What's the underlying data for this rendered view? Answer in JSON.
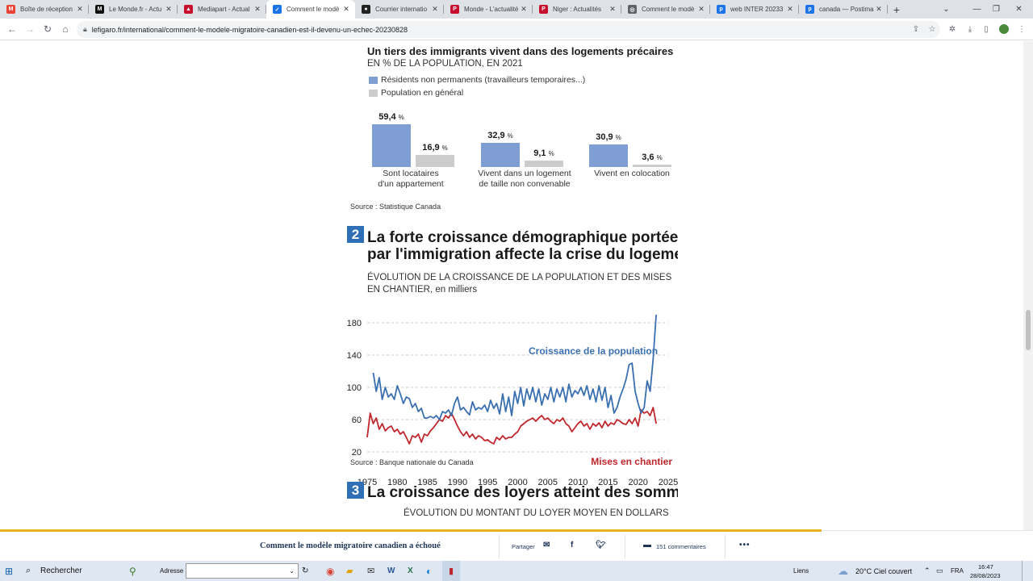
{
  "tabs": [
    {
      "label": "Boîte de réception",
      "icon": "gmail-icon",
      "color": "#ea4335",
      "glyph": "M",
      "active": false
    },
    {
      "label": "Le Monde.fr - Actu",
      "icon": "lemonde-icon",
      "color": "#111111",
      "glyph": "M",
      "active": false
    },
    {
      "label": "Mediapart - Actual",
      "icon": "mediapart-icon",
      "color": "#c8102e",
      "glyph": "▲",
      "active": false
    },
    {
      "label": "Comment le modè",
      "icon": "lefigaro-icon",
      "color": "#1a73e8",
      "glyph": "✓",
      "active": true
    },
    {
      "label": "Courrier internatio",
      "icon": "courrier-icon",
      "color": "#222222",
      "glyph": "●",
      "active": false
    },
    {
      "label": "Monde - L'actualité",
      "icon": "liberation-icon",
      "color": "#c8102e",
      "glyph": "P",
      "active": false
    },
    {
      "label": "Niger : Actualités",
      "icon": "liberation-icon",
      "color": "#c8102e",
      "glyph": "P",
      "active": false
    },
    {
      "label": "Comment le modè",
      "icon": "globe-icon",
      "color": "#5f6368",
      "glyph": "◎",
      "active": false
    },
    {
      "label": "web INTER 20233",
      "icon": "postimage-icon",
      "color": "#1a73e8",
      "glyph": "p",
      "active": false
    },
    {
      "label": "canada — Postima",
      "icon": "postimage-icon",
      "color": "#1a73e8",
      "glyph": "p",
      "active": false
    }
  ],
  "browser": {
    "url": "lefigaro.fr/international/comment-le-modele-migratoire-canadien-est-il-devenu-un-echec-20230828"
  },
  "chart1": {
    "title": "Un tiers des immigrants vivent dans des logements précaires",
    "subtitle": "EN % DE LA POPULATION, EN 2021",
    "source": "Source : Statistique Canada"
  },
  "section2": {
    "number": "2",
    "title_line1": "La forte croissance démographique portée",
    "title_line2": "par l'immigration affecte la crise du logeme",
    "subtitle_line1": "ÉVOLUTION DE LA CROISSANCE DE LA POPULATION ET DES MISES",
    "subtitle_line2": "EN CHANTIER, en milliers",
    "source": "Source : Banque nationale du Canada"
  },
  "section3": {
    "number": "3",
    "title": "La croissance des loyers atteint des somm",
    "subtitle": "ÉVOLUTION DU MONTANT DU LOYER MOYEN EN DOLLARS"
  },
  "chart_data": [
    {
      "type": "bar",
      "title": "Un tiers des immigrants vivent dans des logements précaires",
      "subtitle": "EN % DE LA POPULATION, EN 2021",
      "categories": [
        "Sont locataires\nd'un appartement",
        "Vivent dans un logement\nde taille non convenable",
        "Vivent en colocation"
      ],
      "series": [
        {
          "name": "Résidents non permanents (travailleurs temporaires...)",
          "color": "#7f9fd4",
          "values": [
            59.4,
            32.9,
            30.9
          ],
          "labels": [
            "59,4",
            "32,9",
            "30,9"
          ]
        },
        {
          "name": "Population en général",
          "color": "#cccccc",
          "values": [
            16.9,
            9.1,
            3.6
          ],
          "labels": [
            "16,9",
            "9,1",
            "3,6"
          ]
        }
      ],
      "unit": "%"
    },
    {
      "type": "line",
      "title": "ÉVOLUTION DE LA CROISSANCE DE LA POPULATION ET DES MISES EN CHANTIER, en milliers",
      "xlim": [
        1975,
        2025
      ],
      "ylim": [
        20,
        180
      ],
      "xticks": [
        "1975",
        "1980",
        "1985",
        "1990",
        "1995",
        "2000",
        "2005",
        "2010",
        "2015",
        "2020",
        "2025"
      ],
      "yticks": [
        "20",
        "60",
        "100",
        "140",
        "180"
      ],
      "series": [
        {
          "name": "Croissance de la population",
          "color": "#3a6fb0",
          "x": [
            1976,
            1976.5,
            1977,
            1977.5,
            1978,
            1978.5,
            1979,
            1979.5,
            1980,
            1980.5,
            1981,
            1981.5,
            1982,
            1982.5,
            1983,
            1983.5,
            1984,
            1984.5,
            1985,
            1985.5,
            1986,
            1986.5,
            1987,
            1987.5,
            1988,
            1988.5,
            1989,
            1989.5,
            1990,
            1990.5,
            1991,
            1991.5,
            1992,
            1992.5,
            1993,
            1993.5,
            1994,
            1994.5,
            1995,
            1995.5,
            1996,
            1996.5,
            1997,
            1997.5,
            1998,
            1998.5,
            1999,
            1999.5,
            2000,
            2000.5,
            2001,
            2001.5,
            2002,
            2002.5,
            2003,
            2003.5,
            2004,
            2004.5,
            2005,
            2005.5,
            2006,
            2006.5,
            2007,
            2007.5,
            2008,
            2008.5,
            2009,
            2009.5,
            2010,
            2010.5,
            2011,
            2011.5,
            2012,
            2012.5,
            2013,
            2013.5,
            2014,
            2014.5,
            2015,
            2015.5,
            2016,
            2016.5,
            2017,
            2017.5,
            2018,
            2018.5,
            2019,
            2019.5,
            2020,
            2020.5,
            2021,
            2021.5,
            2022,
            2022.5,
            2023
          ],
          "y": [
            118,
            95,
            112,
            85,
            100,
            88,
            92,
            85,
            102,
            92,
            80,
            88,
            86,
            75,
            80,
            70,
            74,
            62,
            62,
            64,
            62,
            65,
            60,
            70,
            68,
            72,
            65,
            80,
            88,
            72,
            75,
            70,
            66,
            82,
            72,
            75,
            73,
            78,
            70,
            84,
            74,
            80,
            67,
            92,
            70,
            88,
            65,
            95,
            80,
            100,
            77,
            98,
            85,
            100,
            82,
            98,
            78,
            92,
            85,
            100,
            82,
            98,
            88,
            100,
            82,
            104,
            88,
            96,
            92,
            100,
            90,
            102,
            85,
            98,
            82,
            102,
            84,
            100,
            75,
            90,
            68,
            75,
            88,
            98,
            110,
            128,
            130,
            95,
            80,
            68,
            75,
            108,
            95,
            135,
            190
          ]
        },
        {
          "name": "Mises en chantier",
          "color": "#c0272d",
          "x": [
            1975,
            1975.5,
            1976,
            1976.5,
            1977,
            1977.5,
            1978,
            1978.5,
            1979,
            1979.5,
            1980,
            1980.5,
            1981,
            1981.5,
            1982,
            1982.5,
            1983,
            1983.5,
            1984,
            1984.5,
            1985,
            1985.5,
            1986,
            1986.5,
            1987,
            1987.5,
            1988,
            1988.5,
            1989,
            1989.5,
            1990,
            1990.5,
            1991,
            1991.5,
            1992,
            1992.5,
            1993,
            1993.5,
            1994,
            1994.5,
            1995,
            1995.5,
            1996,
            1996.5,
            1997,
            1997.5,
            1998,
            1998.5,
            1999,
            1999.5,
            2000,
            2000.5,
            2001,
            2001.5,
            2002,
            2002.5,
            2003,
            2003.5,
            2004,
            2004.5,
            2005,
            2005.5,
            2006,
            2006.5,
            2007,
            2007.5,
            2008,
            2008.5,
            2009,
            2009.5,
            2010,
            2010.5,
            2011,
            2011.5,
            2012,
            2012.5,
            2013,
            2013.5,
            2014,
            2014.5,
            2015,
            2015.5,
            2016,
            2016.5,
            2017,
            2017.5,
            2018,
            2018.5,
            2019,
            2019.5,
            2020,
            2020.5,
            2021,
            2021.5,
            2022,
            2022.5,
            2023
          ],
          "y": [
            38,
            68,
            55,
            62,
            48,
            55,
            46,
            50,
            52,
            45,
            48,
            42,
            45,
            38,
            30,
            40,
            38,
            42,
            32,
            42,
            40,
            46,
            50,
            55,
            60,
            58,
            65,
            62,
            68,
            60,
            52,
            45,
            40,
            45,
            38,
            42,
            36,
            40,
            38,
            34,
            35,
            32,
            30,
            38,
            35,
            40,
            36,
            38,
            38,
            42,
            45,
            52,
            55,
            58,
            60,
            62,
            58,
            62,
            65,
            60,
            62,
            58,
            55,
            60,
            58,
            62,
            55,
            52,
            45,
            50,
            55,
            58,
            52,
            55,
            48,
            55,
            52,
            56,
            50,
            58,
            52,
            56,
            54,
            60,
            58,
            55,
            54,
            60,
            55,
            62,
            52,
            72,
            68,
            70,
            65,
            75,
            55
          ]
        }
      ]
    }
  ],
  "sticky": {
    "article_title": "Comment le modèle migratoire canadien a échoué",
    "share_label": "Partager",
    "comments": "151 commentaires"
  },
  "taskbar": {
    "search_label": "Rechercher",
    "address_label": "Adresse",
    "links_label": "Liens",
    "weather": "20°C  Ciel couvert",
    "lang": "FRA",
    "time": "16:47",
    "date": "28/08/2023"
  }
}
